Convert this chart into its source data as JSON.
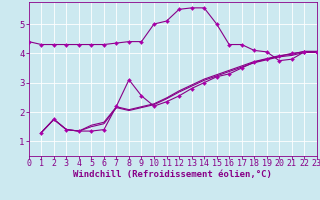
{
  "background_color": "#cce9f0",
  "grid_color": "#ffffff",
  "line_color": "#880088",
  "marker_color": "#aa00aa",
  "xlabel": "Windchill (Refroidissement éolien,°C)",
  "xlim": [
    0,
    23
  ],
  "ylim": [
    0.5,
    5.75
  ],
  "yticks": [
    1,
    2,
    3,
    4,
    5
  ],
  "xticks": [
    0,
    1,
    2,
    3,
    4,
    5,
    6,
    7,
    8,
    9,
    10,
    11,
    12,
    13,
    14,
    15,
    16,
    17,
    18,
    19,
    20,
    21,
    22,
    23
  ],
  "series1_x": [
    0,
    1,
    2,
    3,
    4,
    5,
    6,
    7,
    8,
    9,
    10,
    11,
    12,
    13,
    14,
    15,
    16,
    17,
    18,
    19,
    20,
    21,
    22,
    23
  ],
  "series1_y": [
    4.4,
    4.3,
    4.3,
    4.3,
    4.3,
    4.3,
    4.3,
    4.35,
    4.4,
    4.4,
    5.0,
    5.1,
    5.5,
    5.55,
    5.55,
    5.0,
    4.3,
    4.3,
    4.1,
    4.05,
    3.75,
    3.8,
    4.05,
    4.05
  ],
  "series2_x": [
    1,
    2,
    3,
    4,
    5,
    6,
    7,
    8,
    9,
    10,
    11,
    12,
    13,
    14,
    15,
    16,
    17,
    18,
    19,
    20,
    21,
    22,
    23
  ],
  "series2_y": [
    1.3,
    1.75,
    1.4,
    1.35,
    1.35,
    1.4,
    2.2,
    3.1,
    2.55,
    2.2,
    2.35,
    2.55,
    2.8,
    3.0,
    3.2,
    3.3,
    3.5,
    3.7,
    3.8,
    3.9,
    4.0,
    4.05,
    4.05
  ],
  "series3_x": [
    1,
    2,
    3,
    4,
    5,
    6,
    7,
    8,
    9,
    10,
    11,
    12,
    13,
    14,
    15,
    16,
    17,
    18,
    19,
    20,
    21,
    22,
    23
  ],
  "series3_y": [
    1.3,
    1.75,
    1.4,
    1.35,
    1.5,
    1.6,
    2.15,
    2.05,
    2.15,
    2.25,
    2.45,
    2.68,
    2.88,
    3.08,
    3.23,
    3.38,
    3.53,
    3.68,
    3.78,
    3.88,
    3.93,
    4.03,
    4.03
  ],
  "series4_x": [
    1,
    2,
    3,
    4,
    5,
    6,
    7,
    8,
    9,
    10,
    11,
    12,
    13,
    14,
    15,
    16,
    17,
    18,
    19,
    20,
    21,
    22,
    23
  ],
  "series4_y": [
    1.3,
    1.75,
    1.4,
    1.35,
    1.55,
    1.65,
    2.18,
    2.08,
    2.18,
    2.28,
    2.48,
    2.72,
    2.92,
    3.12,
    3.27,
    3.42,
    3.57,
    3.72,
    3.82,
    3.92,
    3.97,
    4.07,
    4.07
  ],
  "xlabel_fontsize": 6.5,
  "ytick_fontsize": 6.5,
  "xtick_fontsize": 6.0
}
